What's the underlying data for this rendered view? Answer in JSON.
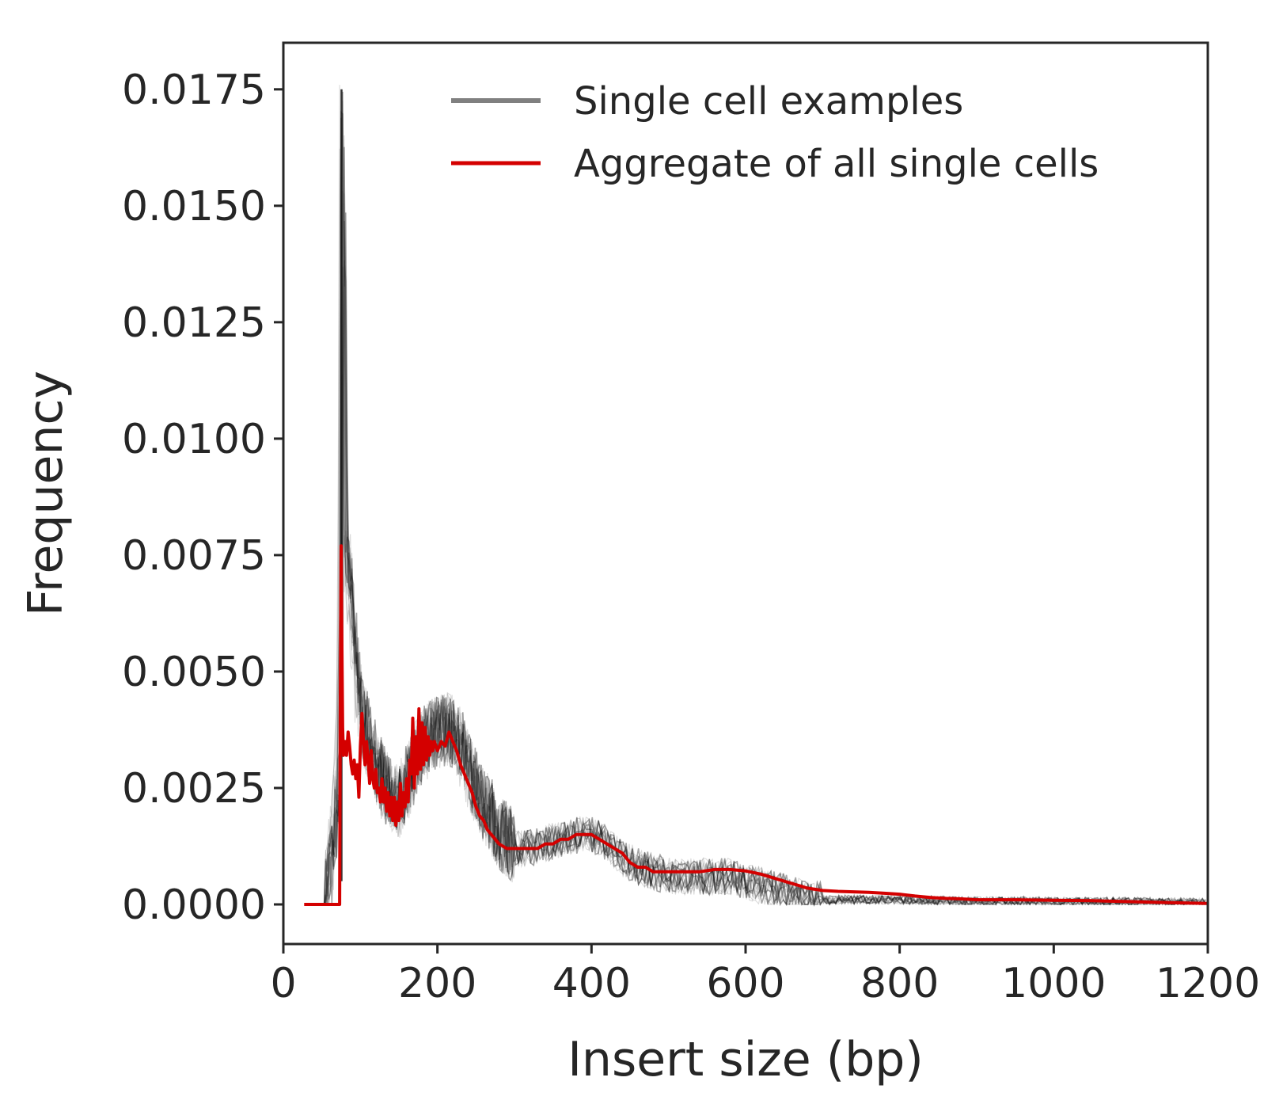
{
  "chart_data": {
    "type": "line",
    "title": "",
    "xlabel": "Insert size (bp)",
    "ylabel": "Frequency",
    "xlim": [
      0,
      1200
    ],
    "ylim": [
      -0.00085,
      0.0185
    ],
    "xticks": [
      0,
      200,
      400,
      600,
      800,
      1000,
      1200
    ],
    "xtick_labels": [
      "0",
      "200",
      "400",
      "600",
      "800",
      "1000",
      "1200"
    ],
    "yticks": [
      0,
      0.0025,
      0.005,
      0.0075,
      0.01,
      0.0125,
      0.015,
      0.0175
    ],
    "ytick_labels": [
      "0.0000",
      "0.0025",
      "0.0050",
      "0.0075",
      "0.0100",
      "0.0125",
      "0.0150",
      "0.0175"
    ],
    "grid": false,
    "legend_position": "top-right",
    "series": [
      {
        "name": "Single cell examples",
        "color": "#808080",
        "style": "many faint thin gray/black traces (single cells)",
        "approx_envelope": {
          "x": [
            50,
            60,
            70,
            74,
            76,
            80,
            85,
            90,
            95,
            100,
            110,
            120,
            130,
            140,
            150,
            160,
            170,
            180,
            190,
            200,
            210,
            220,
            230,
            240,
            250,
            260,
            270,
            280,
            300,
            320,
            340,
            360,
            380,
            400,
            420,
            440,
            460,
            480,
            500,
            520,
            540,
            560,
            580,
            600,
            620,
            640,
            660,
            680,
            700,
            750,
            800,
            850,
            900,
            1000,
            1100,
            1200
          ],
          "y": [
            0,
            0.0008,
            0.0025,
            0.0055,
            0.0175,
            0.0075,
            0.0072,
            0.0058,
            0.0048,
            0.0042,
            0.0035,
            0.003,
            0.0026,
            0.0023,
            0.0022,
            0.0026,
            0.0031,
            0.0034,
            0.0036,
            0.0037,
            0.0038,
            0.0037,
            0.0034,
            0.0029,
            0.0025,
            0.0021,
            0.0018,
            0.0015,
            0.0012,
            0.0012,
            0.0013,
            0.0014,
            0.0015,
            0.0015,
            0.0013,
            0.001,
            0.0008,
            0.0007,
            0.0006,
            0.0006,
            0.0006,
            0.0006,
            0.0006,
            0.0005,
            0.0004,
            0.0003,
            0.0002,
            0.00015,
            0.0001,
            0.0001,
            0.0001,
            8e-05,
            7e-05,
            6e-05,
            5e-05,
            4e-05
          ]
        }
      },
      {
        "name": "Aggregate of all single cells",
        "color": "#d40000",
        "x": [
          27,
          30,
          40,
          50,
          60,
          70,
          73,
          74,
          75,
          76,
          77,
          78,
          80,
          82,
          84,
          86,
          88,
          90,
          92,
          94,
          96,
          98,
          100,
          102,
          104,
          106,
          108,
          110,
          112,
          114,
          116,
          118,
          120,
          122,
          124,
          126,
          128,
          130,
          132,
          134,
          136,
          138,
          140,
          142,
          144,
          146,
          148,
          150,
          152,
          154,
          156,
          158,
          160,
          162,
          164,
          166,
          168,
          170,
          172,
          174,
          176,
          178,
          180,
          182,
          184,
          186,
          188,
          190,
          192,
          194,
          196,
          198,
          200,
          205,
          210,
          215,
          220,
          225,
          230,
          235,
          240,
          245,
          250,
          255,
          260,
          265,
          270,
          275,
          280,
          290,
          300,
          310,
          320,
          330,
          340,
          350,
          360,
          370,
          380,
          390,
          400,
          410,
          420,
          430,
          440,
          450,
          460,
          470,
          480,
          490,
          500,
          520,
          540,
          560,
          580,
          600,
          620,
          640,
          660,
          680,
          700,
          720,
          740,
          760,
          780,
          800,
          820,
          840,
          860,
          880,
          900,
          950,
          1000,
          1050,
          1100,
          1150,
          1200
        ],
        "y": [
          0,
          0,
          0,
          0,
          0,
          0,
          0,
          0.0045,
          0.0077,
          0.0055,
          0.0038,
          0.0032,
          0.0035,
          0.0032,
          0.0037,
          0.0034,
          0.003,
          0.0028,
          0.0031,
          0.0027,
          0.003,
          0.0023,
          0.0034,
          0.0041,
          0.0035,
          0.003,
          0.0035,
          0.0031,
          0.0026,
          0.0033,
          0.0027,
          0.0025,
          0.0029,
          0.0024,
          0.0025,
          0.0022,
          0.0027,
          0.0022,
          0.0025,
          0.002,
          0.0024,
          0.0019,
          0.0023,
          0.0018,
          0.0023,
          0.0017,
          0.0022,
          0.0018,
          0.0026,
          0.0019,
          0.0024,
          0.0021,
          0.0027,
          0.0022,
          0.0031,
          0.0028,
          0.004,
          0.0025,
          0.0036,
          0.0028,
          0.0042,
          0.0029,
          0.0039,
          0.003,
          0.0038,
          0.0031,
          0.0036,
          0.0032,
          0.0035,
          0.0033,
          0.0035,
          0.0034,
          0.0033,
          0.0035,
          0.0034,
          0.0037,
          0.0035,
          0.0033,
          0.003,
          0.0028,
          0.0026,
          0.0024,
          0.0021,
          0.0019,
          0.0018,
          0.0016,
          0.0015,
          0.0014,
          0.0013,
          0.0012,
          0.0012,
          0.0012,
          0.0012,
          0.0012,
          0.0013,
          0.0013,
          0.0014,
          0.0014,
          0.0015,
          0.0015,
          0.0015,
          0.0014,
          0.0013,
          0.0012,
          0.0011,
          0.0009,
          0.0008,
          0.0008,
          0.0007,
          0.0007,
          0.0007,
          0.0007,
          0.0007,
          0.00075,
          0.00075,
          0.00072,
          0.00065,
          0.00055,
          0.00045,
          0.00035,
          0.0003,
          0.00028,
          0.00027,
          0.00026,
          0.00024,
          0.00022,
          0.00018,
          0.00015,
          0.00013,
          0.00012,
          0.0001,
          0.0001,
          9e-05,
          8e-05,
          6e-05,
          4e-05,
          2e-05
        ]
      }
    ]
  }
}
